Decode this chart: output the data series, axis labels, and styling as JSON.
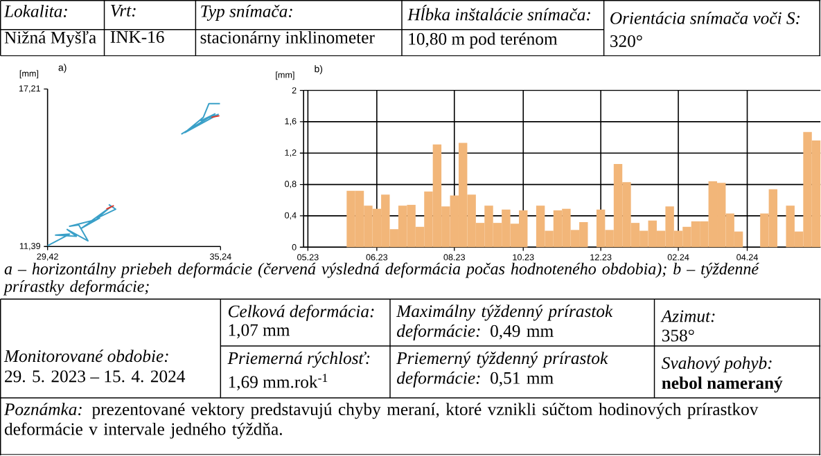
{
  "chart_data": [
    {
      "type": "other",
      "annotations": [
        "Lokalita:",
        "Nižná Myšľa",
        "Vrt:",
        "INK-16",
        "Typ snímača:",
        "stacionárny inklinometer",
        "Hĺbka inštalácie snímača:",
        "10,80 m pod terénom",
        "Orientácia snímača voči S:",
        "320°"
      ]
    },
    {
      "type": "line",
      "title": "a)",
      "ylabel": "[mm]",
      "xlim": [
        29.42,
        35.24
      ],
      "ylim": [
        11.39,
        17.21
      ],
      "xticks": [
        {
          "value": 29.42,
          "label": "29,42"
        },
        {
          "value": 35.24,
          "label": "35,24"
        }
      ],
      "yticks": [
        {
          "value": 11.39,
          "label": "11,39"
        },
        {
          "value": 17.21,
          "label": "17,21"
        }
      ],
      "series": [
        {
          "color": "#3aa0c8",
          "x": [
            29.42,
            30.16,
            29.69,
            30.39,
            30.08,
            30.78,
            30.47,
            30.16,
            30.93,
            30.55,
            31.17,
            30.86,
            31.55,
            31.09,
            31.71,
            31.48,
            32.7,
            33.92,
            35.05,
            34.58,
            35.16,
            34.04,
            34.66,
            34.85,
            35.22
          ],
          "values": [
            11.42,
            11.85,
            11.81,
            11.77,
            12.02,
            11.6,
            12.19,
            12.14,
            12.35,
            12.06,
            12.44,
            12.31,
            12.86,
            12.44,
            12.77,
            12.94,
            null,
            15.54,
            16.29,
            16.04,
            16.27,
            15.6,
            16.16,
            16.67,
            16.67
          ]
        },
        {
          "color": "#e0392b",
          "x": [
            31.4,
            31.65
          ],
          "values": [
            12.77,
            12.9
          ]
        },
        {
          "color": "#e0392b",
          "x": [
            34.93,
            35.2
          ],
          "values": [
            16.16,
            16.22
          ]
        }
      ]
    },
    {
      "type": "bar",
      "title": "b)",
      "ylabel": "[mm]",
      "color": "#f2b679",
      "grid": true,
      "ylim": [
        0,
        2
      ],
      "categories": [
        "05.23",
        null,
        null,
        null,
        null,
        null,
        null,
        null,
        "06.23",
        null,
        null,
        null,
        null,
        null,
        null,
        null,
        null,
        "08.23",
        null,
        null,
        null,
        null,
        null,
        null,
        null,
        "10.23",
        null,
        null,
        null,
        null,
        null,
        null,
        null,
        null,
        "12.23",
        null,
        null,
        null,
        null,
        null,
        null,
        null,
        null,
        "02.24",
        null,
        null,
        null,
        null,
        null,
        null,
        null,
        "04.24",
        null,
        null,
        null,
        null,
        null,
        null,
        null,
        null
      ],
      "yticks": [
        0,
        {
          "value": 0.4,
          "label": "0,4"
        },
        {
          "value": 0.8,
          "label": "0,8"
        },
        {
          "value": 1.2,
          "label": "1,2"
        },
        {
          "value": 1.6,
          "label": "1,6"
        },
        2
      ],
      "values": [
        null,
        null,
        null,
        null,
        null,
        0.72,
        0.72,
        0.53,
        0.49,
        0.67,
        0.23,
        0.53,
        0.54,
        0.26,
        0.71,
        1.31,
        0.52,
        0.66,
        1.33,
        0.67,
        0.31,
        0.53,
        0.31,
        0.48,
        0.3,
        0.47,
        null,
        0.53,
        0.21,
        0.47,
        0.49,
        0.22,
        0.32,
        null,
        0.48,
        0.22,
        1.06,
        0.83,
        0.31,
        0.21,
        0.34,
        0.21,
        0.52,
        0.21,
        0.26,
        0.33,
        0.33,
        0.84,
        0.82,
        0.43,
        0.2,
        null,
        null,
        0.43,
        0.74,
        null,
        0.53,
        0.2,
        1.47,
        1.36
      ]
    },
    {
      "type": "other",
      "annotations": [
        "a – horizontálny priebeh deformácie (červená výsledná deformácia počas hodnoteného obdobia); b – týždenné prírastky deformácie;",
        "Monitorované obdobie:",
        "29. 5. 2023 – 15. 4. 2024",
        "Celková deformácia:",
        "1,07 mm",
        "*Maximálny týždenný prírastok deformácie:* 0,49 mm",
        "Azimut:",
        "358°",
        "Priemerná rýchlosť:",
        "1,69 mm.rok$^{-1}$",
        "*Priemerný týždenný prírastok deformácie:* 0,51 mm",
        "Svahový pohyb:",
        "nebol nameraný",
        "*Poznámka:* prezentované vektory predstavujú chyby meraní, ktoré vznikli súčtom hodinových prírastkov deformácie v intervale jedného týždňa."
      ]
    }
  ]
}
